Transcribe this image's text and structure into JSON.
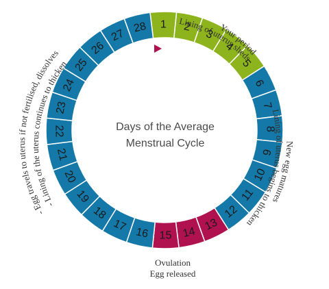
{
  "diagram": {
    "center_line1": "Days of the Average",
    "center_line2": "Menstrual Cycle",
    "days": [
      {
        "label": "1",
        "phase": "period"
      },
      {
        "label": "2",
        "phase": "period"
      },
      {
        "label": "3",
        "phase": "period"
      },
      {
        "label": "4",
        "phase": "period"
      },
      {
        "label": "5",
        "phase": "period"
      },
      {
        "label": "6",
        "phase": "normal"
      },
      {
        "label": "7",
        "phase": "normal"
      },
      {
        "label": "8",
        "phase": "normal"
      },
      {
        "label": "9",
        "phase": "normal"
      },
      {
        "label": "10",
        "phase": "normal"
      },
      {
        "label": "11",
        "phase": "normal"
      },
      {
        "label": "12",
        "phase": "normal"
      },
      {
        "label": "13",
        "phase": "ovulation"
      },
      {
        "label": "14",
        "phase": "ovulation"
      },
      {
        "label": "15",
        "phase": "ovulation"
      },
      {
        "label": "16",
        "phase": "normal"
      },
      {
        "label": "17",
        "phase": "normal"
      },
      {
        "label": "18",
        "phase": "normal"
      },
      {
        "label": "19",
        "phase": "normal"
      },
      {
        "label": "20",
        "phase": "normal"
      },
      {
        "label": "21",
        "phase": "normal"
      },
      {
        "label": "22",
        "phase": "normal"
      },
      {
        "label": "23",
        "phase": "normal"
      },
      {
        "label": "24",
        "phase": "normal"
      },
      {
        "label": "25",
        "phase": "normal"
      },
      {
        "label": "26",
        "phase": "normal"
      },
      {
        "label": "27",
        "phase": "normal"
      },
      {
        "label": "28",
        "phase": "normal"
      }
    ],
    "colors": {
      "normal": "#1479a8",
      "period": "#8db41d",
      "ovulation": "#b0124f",
      "marker": "#b0124f",
      "segment_border": "#ffffff"
    },
    "annotations": {
      "period_line1": "Your period",
      "period_line2": "Lining of uterus sheds",
      "right_line1": "New egg matures",
      "right_line2": "Lining of uterus begins to thicken",
      "ovulation_line1": "Ovulation",
      "ovulation_line2": "Egg released",
      "left_line1": "- Egg travels to uterus if not fertilised, dissolves",
      "left_line2": "- Lining of the uterus continues to thicken"
    },
    "marker_icon": "play-triangle-icon"
  }
}
